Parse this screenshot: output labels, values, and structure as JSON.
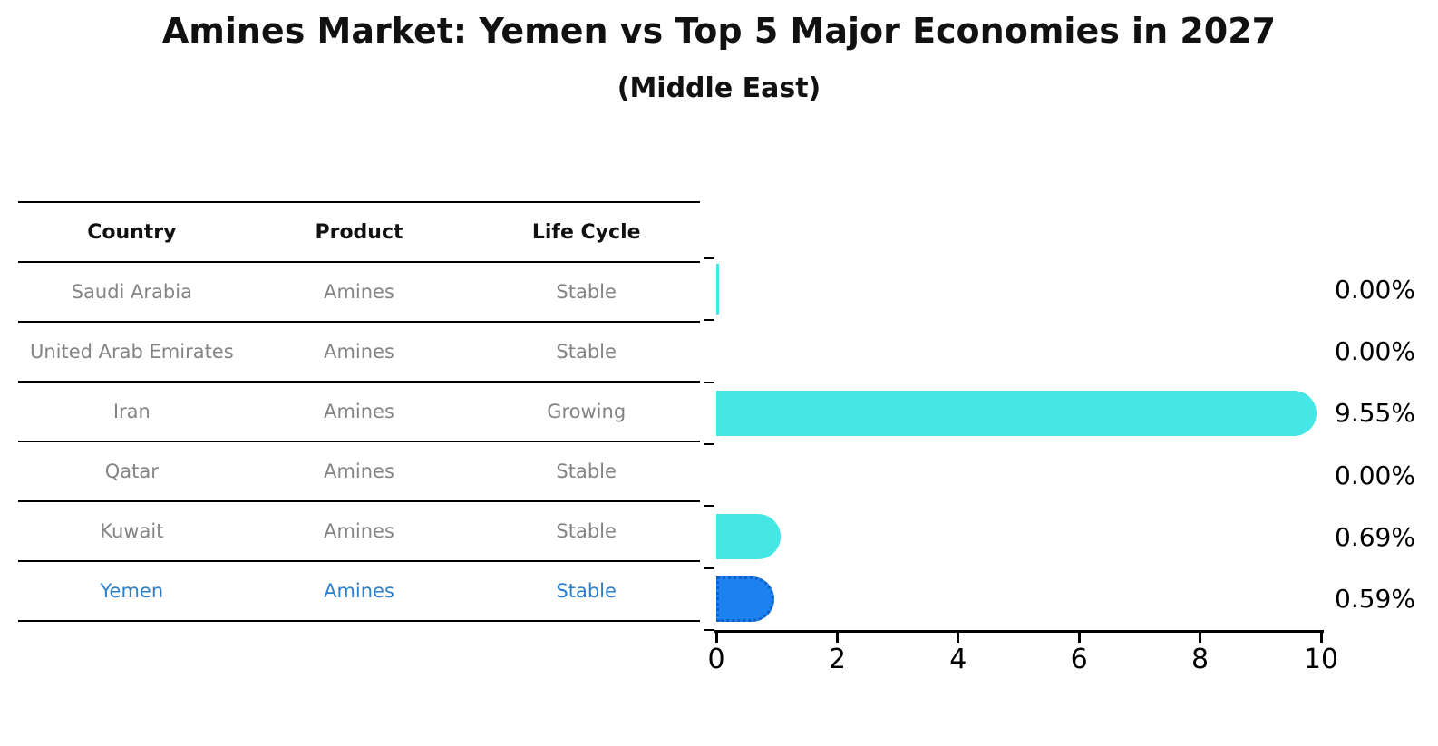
{
  "title": "Amines Market: Yemen vs Top 5 Major Economies in 2027",
  "subtitle": "(Middle East)",
  "table": {
    "headers": [
      "Country",
      "Product",
      "Life Cycle"
    ],
    "rows": [
      {
        "country": "Saudi Arabia",
        "product": "Amines",
        "life_cycle": "Stable",
        "highlighted": false
      },
      {
        "country": "United Arab Emirates",
        "product": "Amines",
        "life_cycle": "Stable",
        "highlighted": false
      },
      {
        "country": "Iran",
        "product": "Amines",
        "life_cycle": "Growing",
        "highlighted": false
      },
      {
        "country": "Qatar",
        "product": "Amines",
        "life_cycle": "Stable",
        "highlighted": false
      },
      {
        "country": "Kuwait",
        "product": "Amines",
        "life_cycle": "Stable",
        "highlighted": false
      },
      {
        "country": "Yemen",
        "product": "Amines",
        "life_cycle": "Stable",
        "highlighted": true
      }
    ]
  },
  "chart_data": {
    "type": "bar",
    "orientation": "horizontal",
    "title": "Amines Market: Yemen vs Top 5 Major Economies in 2027",
    "subtitle": "(Middle East)",
    "categories": [
      "Saudi Arabia",
      "United Arab Emirates",
      "Iran",
      "Qatar",
      "Kuwait",
      "Yemen"
    ],
    "values": [
      0.0,
      0.0,
      9.55,
      0.0,
      0.69,
      0.59
    ],
    "value_labels": [
      "0.00%",
      "0.00%",
      "9.55%",
      "0.00%",
      "0.69%",
      "0.59%"
    ],
    "xlim": [
      0,
      10
    ],
    "x_tick_labels": [
      "0",
      "2",
      "4",
      "6",
      "8",
      "10"
    ],
    "grid": false,
    "legend": false,
    "highlight_index": 5,
    "zero_edge_line_index": 0,
    "bar_color": "#45E6E6",
    "highlight_bar_color": "#1B82F0",
    "highlight_border_color": "#0E5FC2",
    "axis_color": "#000000"
  },
  "colors": {
    "background": "#FFFFFF",
    "title_text": "#111111",
    "table_header_text": "#111111",
    "table_cell_text": "#848484",
    "highlight_text": "#2E7FCB",
    "value_label_text": "#000000"
  }
}
